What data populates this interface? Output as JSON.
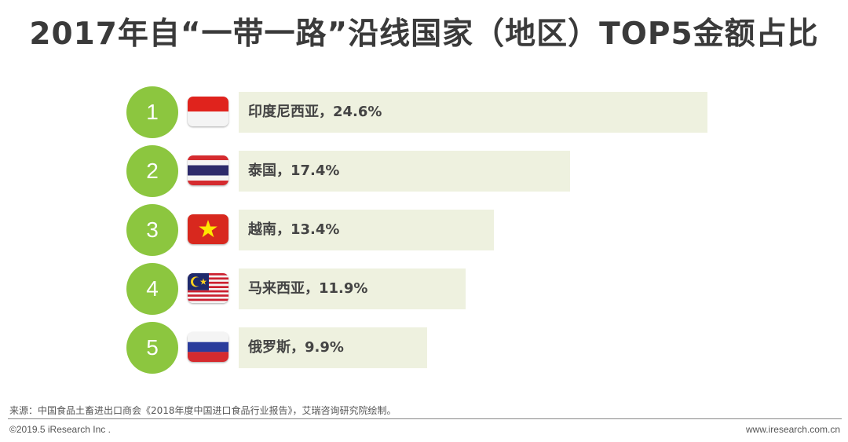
{
  "title": "2017年自“一带一路”沿线国家（地区）TOP5金额占比",
  "chart_data": {
    "type": "bar",
    "orientation": "horizontal",
    "title": "2017年自“一带一路”沿线国家（地区）TOP5金额占比",
    "categories": [
      "印度尼西亚",
      "泰国",
      "越南",
      "马来西亚",
      "俄罗斯"
    ],
    "values": [
      24.6,
      17.4,
      13.4,
      11.9,
      9.9
    ],
    "unit": "%",
    "ranks": [
      "1",
      "2",
      "3",
      "4",
      "5"
    ],
    "labels": [
      "印度尼西亚，24.6%",
      "泰国，17.4%",
      "越南，13.4%",
      "马来西亚，11.9%",
      "俄罗斯，9.9%"
    ],
    "flags": [
      "indonesia-flag-icon",
      "thailand-flag-icon",
      "vietnam-flag-icon",
      "malaysia-flag-icon",
      "russia-flag-icon"
    ],
    "xlim": [
      0,
      24.6
    ],
    "grid": false,
    "legend": "none",
    "colors": {
      "rank_circle": "#8cc63f",
      "bar": "#eef1df",
      "text": "#444444"
    }
  },
  "source": "来源：中国食品土畜进出口商会《2018年度中国进口食品行业报告》，艾瑞咨询研究院绘制。",
  "footer": {
    "copyright": "©2019.5 iResearch Inc .",
    "website": "www.iresearch.com.cn"
  }
}
